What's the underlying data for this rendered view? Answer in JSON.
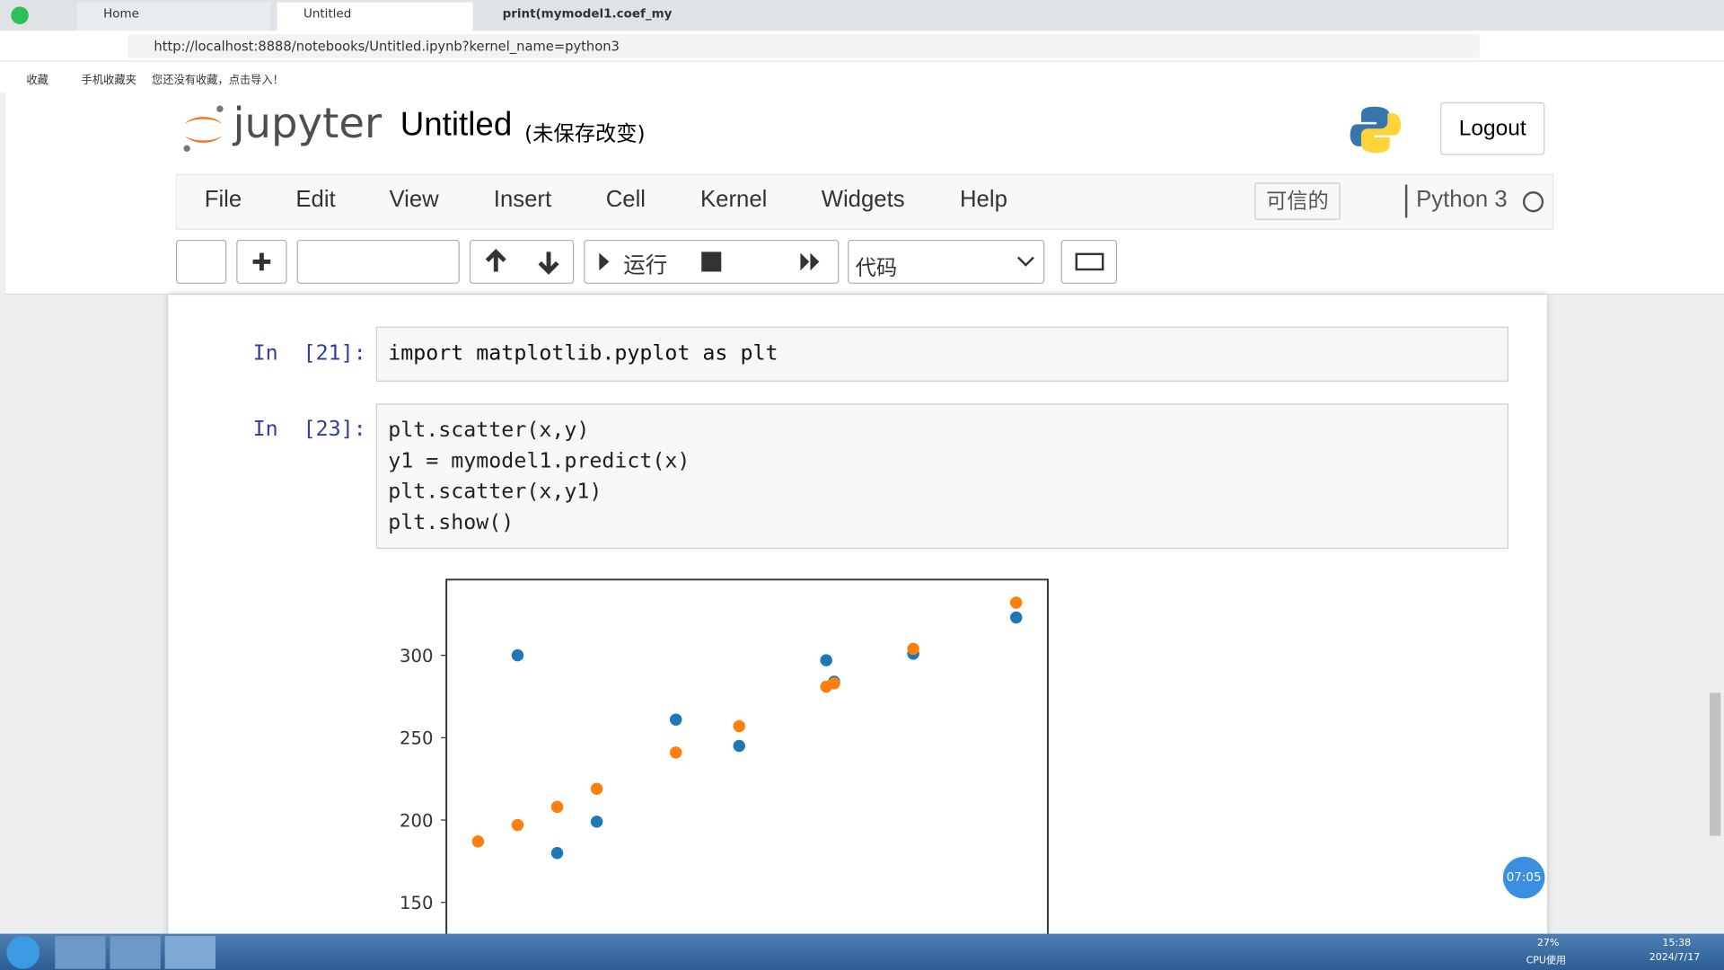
{
  "browser": {
    "tabs": [
      "Home",
      "Untitled",
      "print(mymodel1.coef_my"
    ],
    "url": "http://localhost:8888/notebooks/Untitled.ipynb?kernel_name=python3",
    "bookmarks": [
      "收藏",
      "手机收藏夹",
      "您还没有收藏，点击导入！"
    ]
  },
  "notebook": {
    "logo": "jupyter",
    "title": "Untitled",
    "status": "(未保存改变)",
    "logout": "Logout",
    "menu": [
      "File",
      "Edit",
      "View",
      "Insert",
      "Cell",
      "Kernel",
      "Widgets",
      "Help"
    ],
    "trusted": "可信的",
    "kernel": "Python 3",
    "run": "运行",
    "cell_type": "代码",
    "cells": [
      {
        "prompt": "In  [21]:",
        "code": [
          "import matplotlib.pyplot as plt"
        ]
      },
      {
        "prompt": "In  [23]:",
        "code": [
          "plt.scatter(x,y)",
          "y1 = mymodel1.predict(x)",
          "plt.scatter(x,y1)",
          "plt.show()"
        ]
      }
    ]
  },
  "chart_data": {
    "type": "scatter",
    "x": [
      0.8,
      1.8,
      2.8,
      3.8,
      5.8,
      7.4,
      9.6,
      9.8,
      11.8,
      14.4
    ],
    "series": [
      {
        "color": "#1f77b4",
        "values": [
          null,
          300,
          180,
          199,
          261,
          245,
          297,
          284,
          301,
          323
        ]
      },
      {
        "color": "#ff7f0e",
        "values": [
          187,
          197,
          208,
          219,
          241,
          257,
          281,
          283,
          304,
          332
        ]
      }
    ],
    "xlim": [
      0,
      15.2
    ],
    "ylim": [
      131,
      346
    ],
    "yticks": [
      150,
      200,
      250,
      300
    ]
  },
  "timer": "07:05",
  "taskbar": {
    "cpu": "27%",
    "cpu_label": "CPU使用",
    "time": "15:38",
    "date": "2024/7/17"
  }
}
